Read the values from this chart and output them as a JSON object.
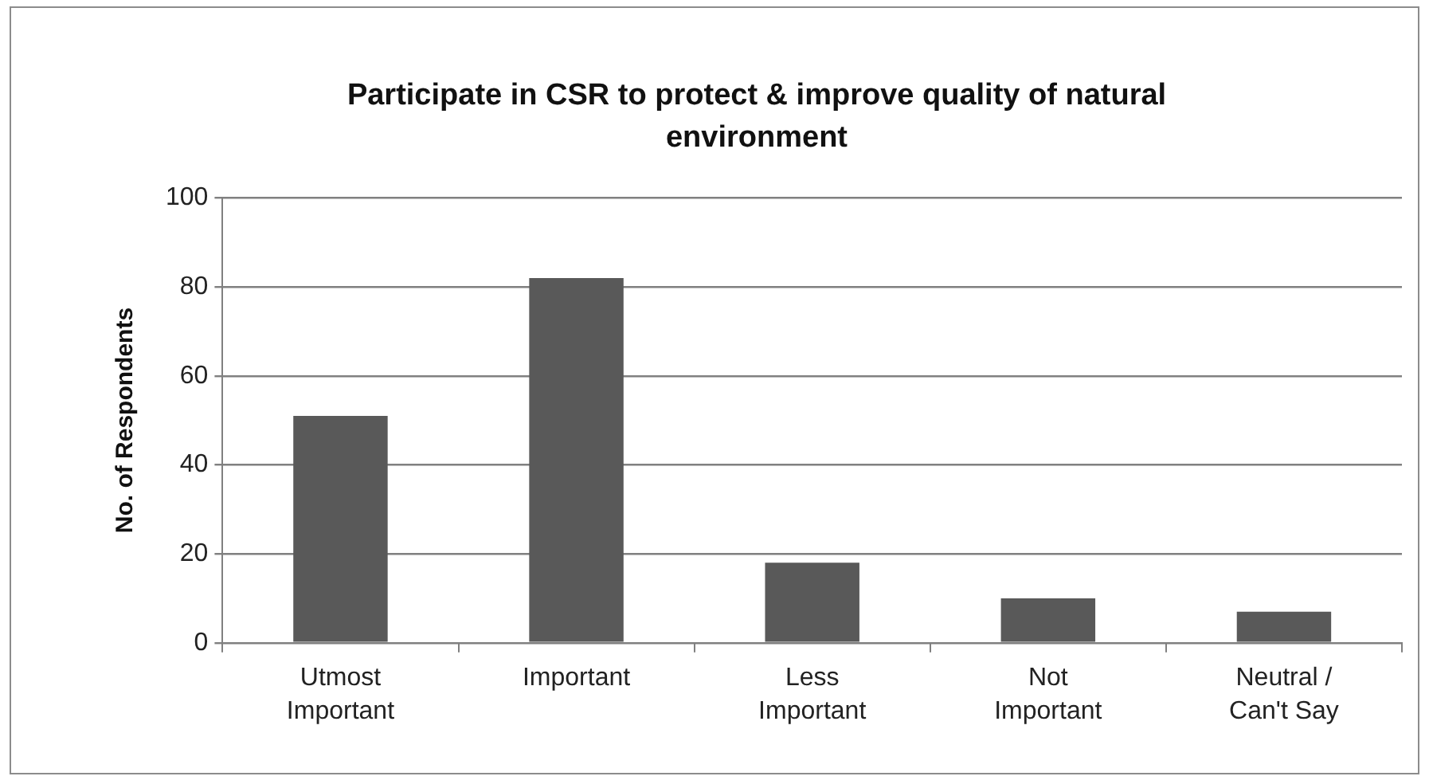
{
  "chart_data": {
    "type": "bar",
    "title": "Participate in CSR to protect & improve quality of natural environment",
    "ylabel": "No. of Respondents",
    "categories": [
      "Utmost Important",
      "Important",
      "Less Important",
      "Not Important",
      "Neutral / Can't Say"
    ],
    "values": [
      51,
      82,
      18,
      10,
      7
    ],
    "color": "#595959",
    "ylim": [
      0,
      100
    ],
    "yticks": [
      0,
      20,
      40,
      60,
      80,
      100
    ],
    "grid": "y"
  }
}
